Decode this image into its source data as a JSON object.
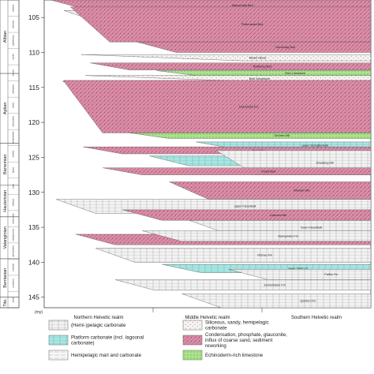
{
  "axis": {
    "unit": "(my)",
    "ticks": [
      105,
      110,
      115,
      120,
      125,
      130,
      135,
      140,
      145
    ],
    "range": [
      102.5,
      146.5
    ]
  },
  "stages": [
    {
      "name": "Albian",
      "from": 102.5,
      "to": 113.0
    },
    {
      "name": "Aptian",
      "from": 113.0,
      "to": 123.0
    },
    {
      "name": "Barremian",
      "from": 123.0,
      "to": 129.0
    },
    {
      "name": "Hauterivian",
      "from": 129.0,
      "to": 133.5
    },
    {
      "name": "Valanginian",
      "from": 133.5,
      "to": 139.5
    },
    {
      "name": "Berriasian",
      "from": 139.5,
      "to": 145.0
    },
    {
      "name": "Tito.",
      "from": 145.0,
      "to": 146.5
    }
  ],
  "substages": [
    "inflatum",
    "dentatus",
    "tardefurcata",
    "jacobi",
    "furcata",
    "deshayesi",
    "weissi",
    "sartousiana",
    "vandenheckei",
    "nicklesi",
    "ligatus",
    "sayni",
    "radiatus",
    "verrucosum",
    "campylotoxus",
    "pertransiens",
    "boissieri",
    "occitanica",
    "jacobi"
  ],
  "realms": [
    "Northern Helvetic realm",
    "Middle Helvetic realm",
    "Southern Helvetic realm"
  ],
  "units": [
    {
      "label": "Wannenalp Bed",
      "type": "pink",
      "top": 102.5,
      "bottom": 104.0
    },
    {
      "label": "Garschella Fm",
      "type": "dots",
      "top": 104.0,
      "bottom": 108.5
    },
    {
      "label": "Selun Beds",
      "type": "dots",
      "top": 104.2,
      "bottom": 108.0
    },
    {
      "label": "Plattenwald Bed",
      "type": "pink",
      "top": 103.5,
      "bottom": 108.5
    },
    {
      "label": "Durschlag Bed",
      "type": "pink",
      "top": 108.5,
      "bottom": 110.0
    },
    {
      "label": "Niederi Beds",
      "type": "dots",
      "top": 110.3,
      "bottom": 111.2
    },
    {
      "label": "Twäriberg Bed",
      "type": "pink",
      "top": 111.5,
      "bottom": 112.5
    },
    {
      "label": "Brisi Limestone",
      "type": "green",
      "top": 112.6,
      "bottom": 113.3
    },
    {
      "label": "Brisi Sandstone",
      "type": "dots",
      "top": 113.3,
      "bottom": 114.2
    },
    {
      "label": "Gams Beds",
      "type": "dots",
      "top": 114.2,
      "bottom": 115.2
    },
    {
      "label": "Luitere Bed",
      "type": "pink",
      "top": 115.5,
      "bottom": 117.0
    },
    {
      "label": "Garschella Fm",
      "type": "pink",
      "top": 114.0,
      "bottom": 121.5
    },
    {
      "label": "Grünten Mb",
      "type": "green",
      "top": 121.5,
      "bottom": 122.3
    },
    {
      "label": "upper Schrattenkalk",
      "type": "cyan",
      "top": 122.8,
      "bottom": 123.8
    },
    {
      "label": "Rawil Mb",
      "type": "pink",
      "top": 123.5,
      "bottom": 124.5
    },
    {
      "label": "lower Schrattenkalk",
      "type": "cyan",
      "top": 124.8,
      "bottom": 126.2
    },
    {
      "label": "Drusberg Mb",
      "type": "hemi",
      "top": 124.0,
      "bottom": 127.5
    },
    {
      "label": "Chopf Bed",
      "type": "pink",
      "top": 126.5,
      "bottom": 127.5
    },
    {
      "label": "Altmann Mb",
      "type": "pink",
      "top": 128.5,
      "bottom": 131.0
    },
    {
      "label": "upper Kieselkalk",
      "type": "hemi",
      "top": 131.0,
      "bottom": 133.0
    },
    {
      "label": "Lidernen Mb",
      "type": "pink",
      "top": 132.5,
      "bottom": 134.0
    },
    {
      "label": "lower Kieselkalk",
      "type": "hemi",
      "top": 134.0,
      "bottom": 136.0
    },
    {
      "label": "Gemsmättli Pygurus",
      "type": "pink",
      "top": 136.0,
      "bottom": 137.5
    },
    {
      "label": "Diphyoides Fm",
      "type": "hemi",
      "top": 135.5,
      "bottom": 137.0
    },
    {
      "label": "upper Öhrli Lst",
      "type": "cyan",
      "top": 138.5,
      "bottom": 139.5
    },
    {
      "label": "Vitznau Fm",
      "type": "hemi",
      "top": 138.0,
      "bottom": 140.0
    },
    {
      "label": "lower Öhrli Lst",
      "type": "cyan",
      "top": 140.3,
      "bottom": 141.5
    },
    {
      "label": "Palfris Fm",
      "type": "hemi",
      "top": 141.0,
      "bottom": 142.5
    },
    {
      "label": "Zementstein Fm",
      "type": "hemi",
      "top": 142.5,
      "bottom": 144.0
    },
    {
      "label": "Quinten Fm",
      "type": "hemi",
      "top": 144.5,
      "bottom": 146.5
    }
  ],
  "legend": [
    {
      "label": "(Hemi-)pelagic carbonate",
      "type": "hemi"
    },
    {
      "label": "Siliceous, sandy, hemipelagic carbonate",
      "type": "dots"
    },
    {
      "label": "Platform carbonate (incl. lagoonal carbonate)",
      "type": "cyan"
    },
    {
      "label": "Condensation, phosphate, glauconite, influx of coarse sand, sediment reworking",
      "type": "pink"
    },
    {
      "label": "Hemipelagic marl and carbonate",
      "type": "marl"
    },
    {
      "label": "Echinoderm-rich limestone",
      "type": "green"
    }
  ],
  "colors": {
    "pink": "#d98da6",
    "cyan": "#a8e6e3",
    "green": "#a9e38a",
    "dots": "#f4f1ee",
    "hemi": "#f0f0f0",
    "marl": "#f6f6f6",
    "line": "#555555"
  }
}
